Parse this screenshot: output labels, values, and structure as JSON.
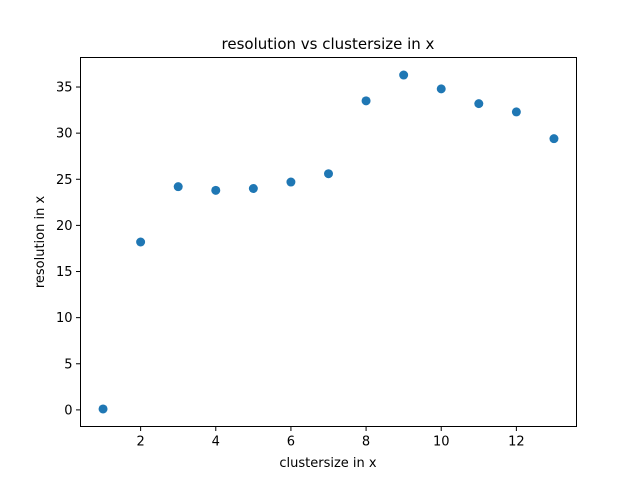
{
  "chart_data": {
    "type": "scatter",
    "title": "resolution vs clustersize in x",
    "xlabel": "clustersize in x",
    "ylabel": "resolution in x",
    "x": [
      1,
      2,
      3,
      4,
      5,
      6,
      7,
      8,
      9,
      10,
      11,
      12,
      13
    ],
    "y": [
      0.1,
      18.2,
      24.2,
      23.8,
      24.0,
      24.7,
      25.6,
      33.5,
      36.3,
      34.8,
      33.2,
      32.3,
      29.4
    ],
    "xlim": [
      0.4,
      13.6
    ],
    "ylim": [
      -1.8,
      38.2
    ],
    "xticks": [
      2,
      4,
      6,
      8,
      10,
      12
    ],
    "yticks": [
      0,
      5,
      10,
      15,
      20,
      25,
      30,
      35
    ],
    "grid": false,
    "marker_color": "#1f77b4"
  }
}
